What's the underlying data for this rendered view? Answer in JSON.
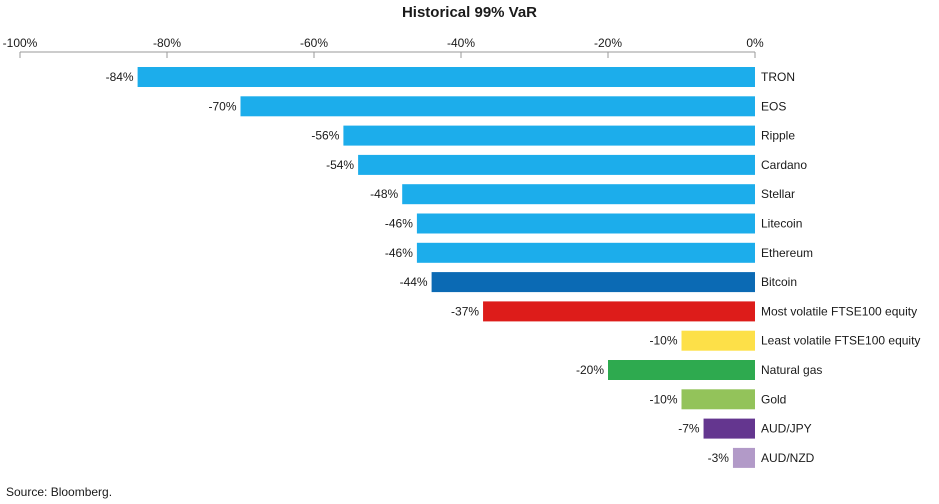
{
  "chart_data": {
    "type": "bar",
    "orientation": "horizontal",
    "title": "Historical 99% VaR",
    "source": "Source: Bloomberg.",
    "xlim": [
      -100,
      0
    ],
    "x_ticks": [
      -100,
      -80,
      -60,
      -40,
      -20,
      0
    ],
    "x_tick_labels": [
      "-100%",
      "-80%",
      "-60%",
      "-40%",
      "-20%",
      "0%"
    ],
    "x_axis_position": "top",
    "grid": false,
    "categories": [
      "TRON",
      "EOS",
      "Ripple",
      "Cardano",
      "Stellar",
      "Litecoin",
      "Ethereum",
      "Bitcoin",
      "Most volatile FTSE100 equity",
      "Least volatile FTSE100 equity",
      "Natural gas",
      "Gold",
      "AUD/JPY",
      "AUD/NZD"
    ],
    "values": [
      -84,
      -70,
      -56,
      -54,
      -48,
      -46,
      -46,
      -44,
      -37,
      -10,
      -20,
      -10,
      -7,
      -3
    ],
    "value_labels": [
      "-84%",
      "-70%",
      "-56%",
      "-54%",
      "-48%",
      "-46%",
      "-46%",
      "-44%",
      "-37%",
      "-10%",
      "-20%",
      "-10%",
      "-7%",
      "-3%"
    ],
    "colors": [
      "#1cadeb",
      "#1cadeb",
      "#1cadeb",
      "#1cadeb",
      "#1cadeb",
      "#1cadeb",
      "#1cadeb",
      "#0b6ab4",
      "#dd1c1a",
      "#fde048",
      "#2eaa4f",
      "#93c35a",
      "#64368f",
      "#b29ac8"
    ]
  }
}
